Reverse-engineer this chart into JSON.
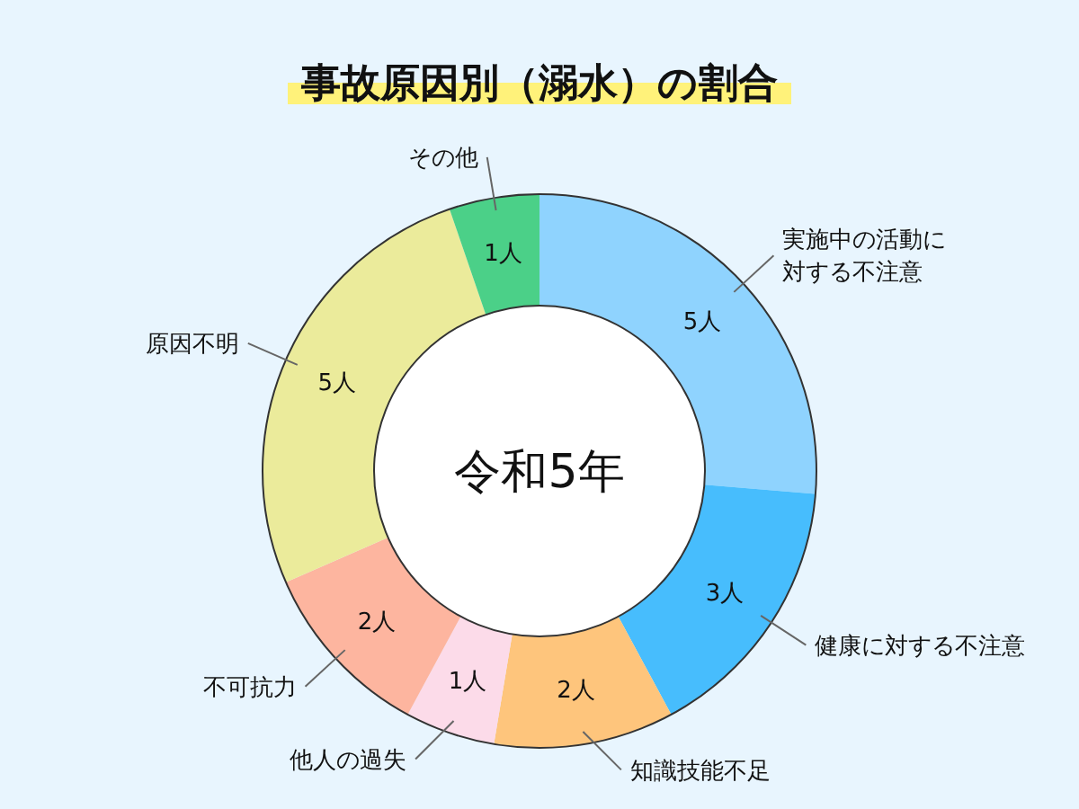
{
  "chart_data": {
    "type": "donut",
    "title": "事故原因別（溺水）の割合",
    "categories": [
      "実施中の活動に対する不注意",
      "健康に対する不注意",
      "知識技能不足",
      "他人の過失",
      "不可抗力",
      "原因不明",
      "その他"
    ],
    "values": [
      5,
      3,
      2,
      1,
      2,
      5,
      1
    ],
    "colors": [
      "#8fd3fe",
      "#47bdfd",
      "#fec57c",
      "#fcdbe9",
      "#fdb59f",
      "#ebeb9b",
      "#4bd088"
    ],
    "value_labels": [
      "5人",
      "3人",
      "2人",
      "1人",
      "2人",
      "5人",
      "1人"
    ],
    "annotations": [
      "令和5年"
    ]
  }
}
